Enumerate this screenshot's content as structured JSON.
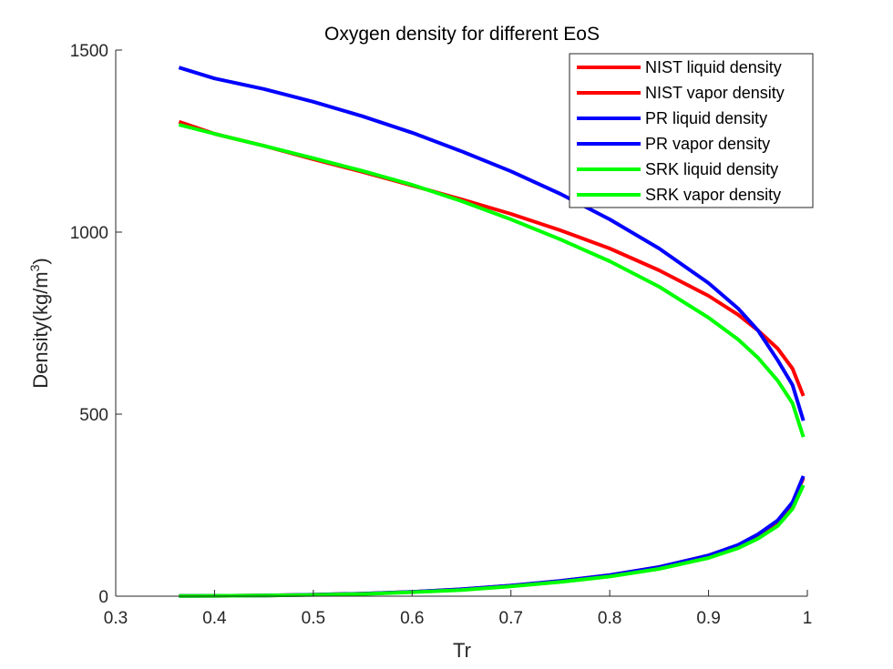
{
  "chart_data": {
    "type": "line",
    "title": "Oxygen density for different EoS",
    "xlabel": "Tr",
    "ylabel_base": "Density(kg/m",
    "ylabel_sup": "3",
    "ylabel_close": ")",
    "xlim": [
      0.3,
      1.0
    ],
    "ylim": [
      0,
      1500
    ],
    "xticks": [
      0.3,
      0.4,
      0.5,
      0.6,
      0.7,
      0.8,
      0.9,
      1.0
    ],
    "xtick_labels": [
      "0.3",
      "0.4",
      "0.5",
      "0.6",
      "0.7",
      "0.8",
      "0.9",
      "1"
    ],
    "yticks": [
      0,
      500,
      1000,
      1500
    ],
    "ytick_labels": [
      "0",
      "500",
      "1000",
      "1500"
    ],
    "grid": false,
    "legend_position": "top-right",
    "x": [
      0.364,
      0.4,
      0.45,
      0.5,
      0.55,
      0.6,
      0.65,
      0.7,
      0.75,
      0.8,
      0.85,
      0.9,
      0.93,
      0.95,
      0.97,
      0.985,
      0.996
    ],
    "series": [
      {
        "name": "NIST liquid density",
        "color": "#ff0000",
        "values": [
          1303,
          1270,
          1237,
          1200,
          1165,
          1128,
          1090,
          1050,
          1005,
          955,
          895,
          825,
          773,
          730,
          680,
          625,
          550
        ]
      },
      {
        "name": "NIST vapor density",
        "color": "#ff0000",
        "values": [
          0.5,
          1,
          2,
          4,
          7,
          12,
          19,
          29,
          42,
          58,
          80,
          112,
          140,
          168,
          205,
          255,
          325
        ]
      },
      {
        "name": "PR liquid density",
        "color": "#0000ff",
        "values": [
          1452,
          1422,
          1393,
          1358,
          1318,
          1273,
          1222,
          1167,
          1105,
          1035,
          955,
          860,
          790,
          730,
          648,
          580,
          482
        ]
      },
      {
        "name": "PR vapor density",
        "color": "#0000ff",
        "values": [
          0.5,
          1,
          2,
          4,
          7,
          12,
          19,
          29,
          42,
          58,
          80,
          112,
          141,
          170,
          208,
          258,
          330
        ]
      },
      {
        "name": "SRK liquid density",
        "color": "#00ff00",
        "values": [
          1295,
          1270,
          1237,
          1203,
          1168,
          1130,
          1085,
          1035,
          980,
          920,
          850,
          765,
          705,
          655,
          592,
          530,
          437
        ]
      },
      {
        "name": "SRK vapor density",
        "color": "#00ff00",
        "values": [
          0.5,
          1,
          2,
          3.5,
          6,
          11,
          17,
          27,
          39,
          54,
          75,
          105,
          132,
          158,
          193,
          240,
          305
        ]
      }
    ]
  }
}
